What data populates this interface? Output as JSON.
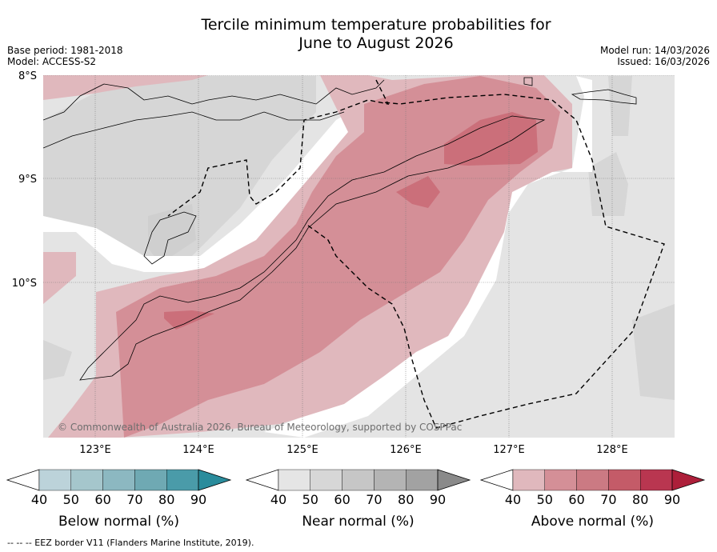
{
  "title_line1": "Tercile minimum temperature probabilities for",
  "title_line2": "June to August 2026",
  "base_period": "Base period: 1981-2018",
  "model": "Model: ACCESS-S2",
  "model_run": "Model run: 14/03/2026",
  "issued": "Issued: 16/03/2026",
  "map": {
    "lat_labels": [
      "8°S",
      "9°S",
      "10°S"
    ],
    "lon_labels": [
      "123°E",
      "124°E",
      "125°E",
      "126°E",
      "127°E",
      "128°E"
    ],
    "copyright": "© Commonwealth of Australia 2026, Bureau of Meteorology, supported by COSPPac"
  },
  "colorbars": [
    {
      "name": "below",
      "label": "Below normal (%)",
      "ticks": [
        "40",
        "50",
        "60",
        "70",
        "80",
        "90"
      ],
      "colors": [
        "#bcd3da",
        "#a5c6cc",
        "#8cb8c1",
        "#6fa9b3",
        "#4a9ba9",
        "#2a8c9c"
      ]
    },
    {
      "name": "near",
      "label": "Near normal (%)",
      "ticks": [
        "40",
        "50",
        "60",
        "70",
        "80",
        "90"
      ],
      "colors": [
        "#e5e5e5",
        "#d7d7d7",
        "#c6c6c6",
        "#b4b4b4",
        "#a2a2a2",
        "#8a8a8a"
      ]
    },
    {
      "name": "above",
      "label": "Above normal (%)",
      "ticks": [
        "40",
        "50",
        "60",
        "70",
        "80",
        "90"
      ],
      "colors": [
        "#e0b8bd",
        "#d48f97",
        "#cb7a83",
        "#c45b68",
        "#b93650",
        "#ad1f3a"
      ]
    }
  ],
  "footer": "--  --  -- EEZ border V11 (Flanders Marine Institute, 2019)."
}
